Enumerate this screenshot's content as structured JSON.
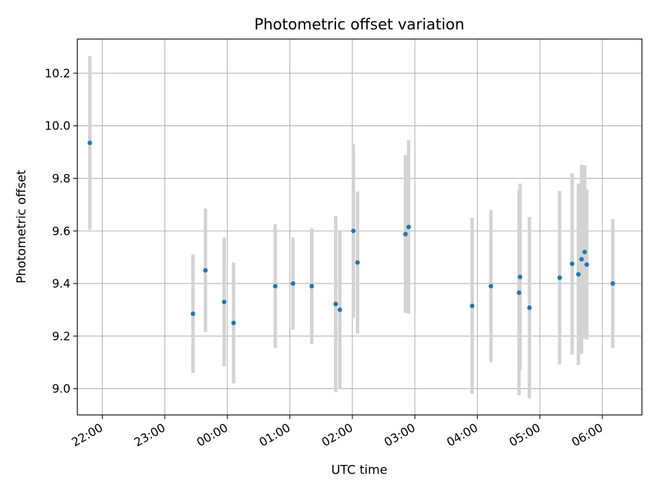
{
  "chart_data": {
    "type": "scatter",
    "title": "Photometric offset variation",
    "xlabel": "UTC time",
    "ylabel": "Photometric offset",
    "grid": true,
    "xlim": [
      "21:36",
      "06:38"
    ],
    "ylim": [
      8.9,
      10.33
    ],
    "x_ticks": [
      "22:00",
      "23:00",
      "00:00",
      "01:00",
      "02:00",
      "03:00",
      "04:00",
      "05:00",
      "06:00"
    ],
    "y_ticks": [
      "9.0",
      "9.2",
      "9.4",
      "9.6",
      "9.8",
      "10.0",
      "10.2"
    ],
    "colors": {
      "point": "#1f77b4",
      "errorbar": "#d3d3d3",
      "grid": "#b0b0b0"
    },
    "series": [
      {
        "points": [
          {
            "x": "21:48",
            "y": 9.935,
            "yerr": 0.33
          },
          {
            "x": "23:27",
            "y": 9.285,
            "yerr": 0.225
          },
          {
            "x": "23:39",
            "y": 9.45,
            "yerr": 0.235
          },
          {
            "x": "23:57",
            "y": 9.33,
            "yerr": 0.245
          },
          {
            "x": "00:06",
            "y": 9.25,
            "yerr": 0.23
          },
          {
            "x": "00:46",
            "y": 9.39,
            "yerr": 0.235
          },
          {
            "x": "01:03",
            "y": 9.4,
            "yerr": 0.175
          },
          {
            "x": "01:21",
            "y": 9.39,
            "yerr": 0.22
          },
          {
            "x": "01:44",
            "y": 9.322,
            "yerr": 0.335
          },
          {
            "x": "01:48",
            "y": 9.3,
            "yerr": 0.3
          },
          {
            "x": "02:01",
            "y": 9.6,
            "yerr": 0.33
          },
          {
            "x": "02:05",
            "y": 9.48,
            "yerr": 0.27
          },
          {
            "x": "02:51",
            "y": 9.588,
            "yerr": 0.3
          },
          {
            "x": "02:54",
            "y": 9.615,
            "yerr": 0.33
          },
          {
            "x": "03:55",
            "y": 9.315,
            "yerr": 0.335
          },
          {
            "x": "04:13",
            "y": 9.39,
            "yerr": 0.29
          },
          {
            "x": "04:40",
            "y": 9.365,
            "yerr": 0.39
          },
          {
            "x": "04:41",
            "y": 9.425,
            "yerr": 0.355
          },
          {
            "x": "04:50",
            "y": 9.308,
            "yerr": 0.345
          },
          {
            "x": "05:19",
            "y": 9.422,
            "yerr": 0.33
          },
          {
            "x": "05:31",
            "y": 9.475,
            "yerr": 0.345
          },
          {
            "x": "05:37",
            "y": 9.435,
            "yerr": 0.345
          },
          {
            "x": "05:40",
            "y": 9.492,
            "yerr": 0.36
          },
          {
            "x": "05:43",
            "y": 9.52,
            "yerr": 0.33
          },
          {
            "x": "05:45",
            "y": 9.472,
            "yerr": 0.285
          },
          {
            "x": "06:10",
            "y": 9.4,
            "yerr": 0.245
          }
        ]
      }
    ]
  }
}
